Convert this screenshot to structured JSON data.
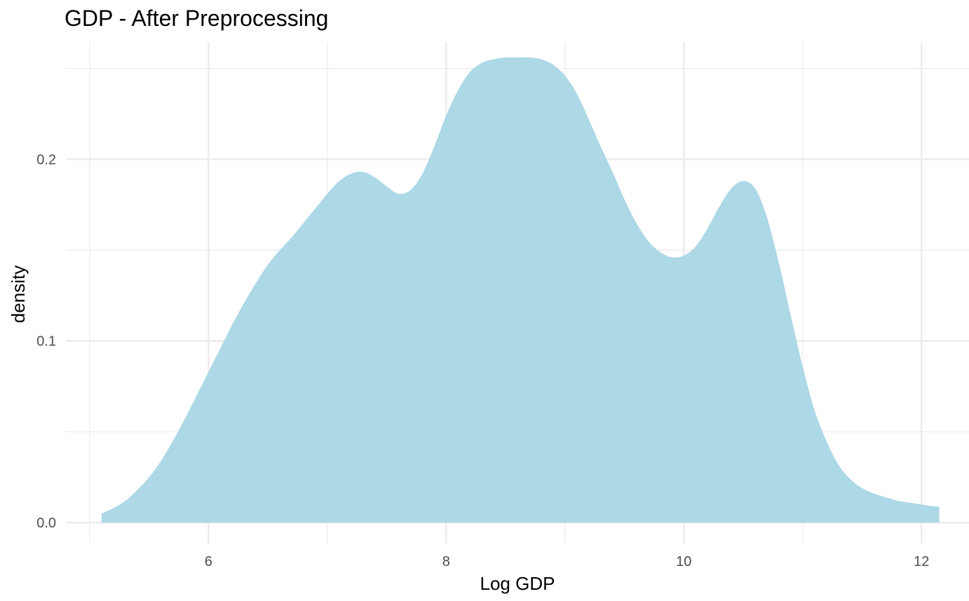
{
  "chart_data": {
    "type": "area",
    "title": "GDP - After Preprocessing",
    "xlabel": "Log GDP",
    "ylabel": "density",
    "xlim": [
      4.8,
      12.4
    ],
    "ylim": [
      -0.0115,
      0.2645
    ],
    "x_ticks": [
      6,
      8,
      10,
      12
    ],
    "x_tick_labels": [
      "6",
      "8",
      "10",
      "12"
    ],
    "y_ticks": [
      0.0,
      0.1,
      0.2
    ],
    "y_tick_labels": [
      "0.0",
      "0.1",
      "0.2"
    ],
    "grid": true,
    "legend": "none",
    "colors": {
      "fill": "#add8e6",
      "grid": "#ebebeb",
      "tick_text": "#4d4d4d",
      "title_text": "#000000"
    },
    "series": [
      {
        "x": [
          5.1,
          5.2,
          5.3,
          5.4,
          5.5,
          5.6,
          5.7,
          5.8,
          5.9,
          6.0,
          6.1,
          6.2,
          6.3,
          6.4,
          6.5,
          6.6,
          6.7,
          6.8,
          6.9,
          7.0,
          7.1,
          7.2,
          7.3,
          7.4,
          7.5,
          7.6,
          7.7,
          7.8,
          7.9,
          8.0,
          8.1,
          8.2,
          8.3,
          8.4,
          8.5,
          8.6,
          8.7,
          8.8,
          8.9,
          9.0,
          9.1,
          9.2,
          9.3,
          9.4,
          9.5,
          9.6,
          9.7,
          9.8,
          9.9,
          10.0,
          10.1,
          10.2,
          10.3,
          10.4,
          10.5,
          10.6,
          10.7,
          10.8,
          10.9,
          11.0,
          11.1,
          11.2,
          11.3,
          11.4,
          11.5,
          11.6,
          11.7,
          11.8,
          11.9,
          12.0,
          12.1,
          12.15
        ],
        "y": [
          0.005,
          0.008,
          0.012,
          0.018,
          0.025,
          0.034,
          0.045,
          0.057,
          0.07,
          0.083,
          0.096,
          0.109,
          0.121,
          0.132,
          0.142,
          0.15,
          0.157,
          0.165,
          0.173,
          0.181,
          0.188,
          0.192,
          0.193,
          0.19,
          0.185,
          0.181,
          0.183,
          0.192,
          0.207,
          0.224,
          0.238,
          0.248,
          0.253,
          0.255,
          0.256,
          0.256,
          0.256,
          0.255,
          0.252,
          0.246,
          0.236,
          0.222,
          0.207,
          0.193,
          0.178,
          0.165,
          0.155,
          0.149,
          0.146,
          0.147,
          0.152,
          0.162,
          0.174,
          0.184,
          0.188,
          0.184,
          0.168,
          0.143,
          0.114,
          0.086,
          0.062,
          0.045,
          0.032,
          0.024,
          0.019,
          0.016,
          0.014,
          0.012,
          0.011,
          0.01,
          0.009,
          0.009
        ]
      }
    ]
  }
}
